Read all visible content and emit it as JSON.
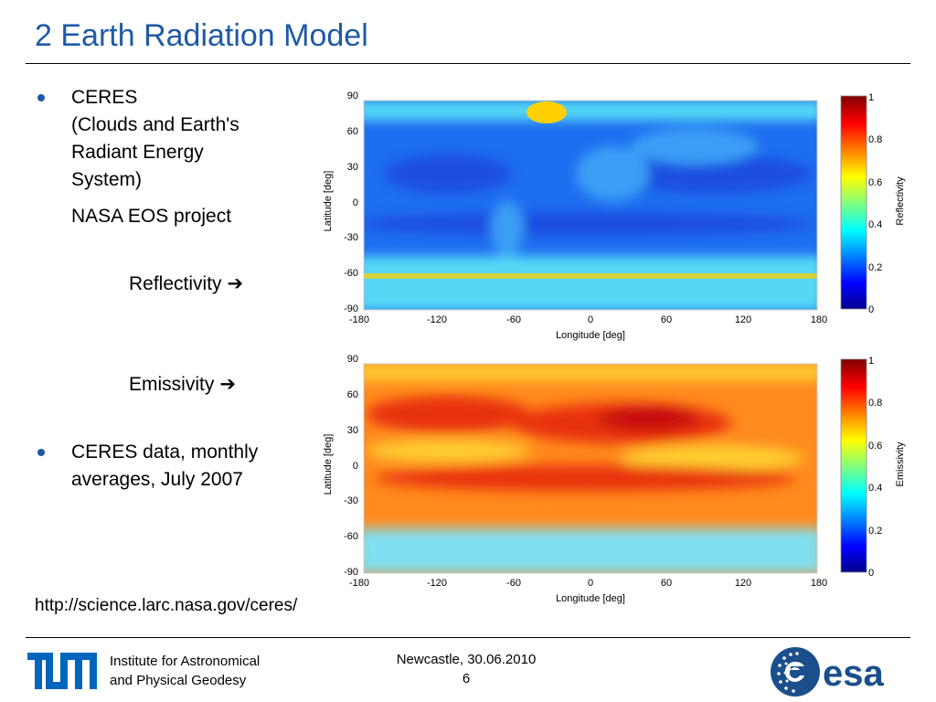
{
  "slide": {
    "title": "2 Earth Radiation Model",
    "bullets": [
      {
        "lines": [
          "CERES",
          "(Clouds and Earth's",
          "Radiant Energy",
          "System)"
        ],
        "sub": "NASA EOS project"
      },
      {
        "lines": [
          "CERES data, monthly",
          "averages, July 2007"
        ]
      }
    ],
    "labels": {
      "reflectivity": "Reflectivity",
      "emissivity": "Emissivity"
    },
    "url": "http://science.larc.nasa.gov/ceres/"
  },
  "footer": {
    "institute_line1": "Institute for Astronomical",
    "institute_line2": "and Physical Geodesy",
    "location_date": "Newcastle, 30.06.2010",
    "page_number": "6",
    "esa_logo_text": "esa",
    "tum_logo_text": "TUM"
  },
  "maps": [
    {
      "quantity": "Reflectivity",
      "xlabel": "Longitude [deg]",
      "ylabel": "Latitude [deg]",
      "colorbar_label": "Reflectivity",
      "x_ticks": [
        "-180",
        "-120",
        "-60",
        "0",
        "60",
        "120",
        "180"
      ],
      "y_ticks": [
        "90",
        "60",
        "30",
        "0",
        "-30",
        "-60",
        "-90"
      ],
      "colorbar_ticks": [
        "1",
        "0.8",
        "0.6",
        "0.4",
        "0.2",
        "0"
      ],
      "colors": {
        "base": "#1e6ef0",
        "ocean": "#1a50e0",
        "polar": "#55d8f5",
        "cloud": "#3a9ef5",
        "ice": "#ffd000"
      }
    },
    {
      "quantity": "Emissivity",
      "xlabel": "Longitude [deg]",
      "ylabel": "Latitude [deg]",
      "colorbar_label": "Emissivity",
      "x_ticks": [
        "-180",
        "-120",
        "-60",
        "0",
        "60",
        "120",
        "180"
      ],
      "y_ticks": [
        "90",
        "60",
        "30",
        "0",
        "-30",
        "-60",
        "-90"
      ],
      "colorbar_ticks": [
        "1",
        "0.8",
        "0.6",
        "0.4",
        "0.2",
        "0"
      ],
      "colors": {
        "base": "#ff8a1e",
        "hot": "#e83010",
        "hotter": "#c81008",
        "polar": "#7ee0f0",
        "yellow": "#ffd030"
      }
    }
  ],
  "theme": {
    "title_color": "#1f5aa6",
    "esa_color": "#1a4f8c",
    "tum_color": "#0065bd"
  }
}
